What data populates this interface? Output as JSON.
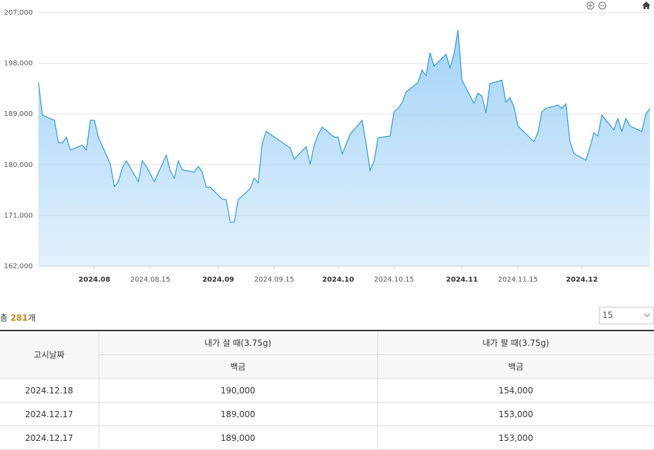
{
  "chart_data": {
    "type": "area",
    "x": [
      "2024.07.18",
      "2024.07.19",
      "2024.07.22",
      "2024.07.23",
      "2024.07.24",
      "2024.07.25",
      "2024.07.26",
      "2024.07.29",
      "2024.07.30",
      "2024.07.31",
      "2024.08.01",
      "2024.08.02",
      "2024.08.05",
      "2024.08.06",
      "2024.08.07",
      "2024.08.08",
      "2024.08.09",
      "2024.08.12",
      "2024.08.13",
      "2024.08.14",
      "2024.08.16",
      "2024.08.19",
      "2024.08.20",
      "2024.08.21",
      "2024.08.22",
      "2024.08.23",
      "2024.08.26",
      "2024.08.27",
      "2024.08.28",
      "2024.08.29",
      "2024.08.30",
      "2024.09.02",
      "2024.09.03",
      "2024.09.04",
      "2024.09.05",
      "2024.09.06",
      "2024.09.09",
      "2024.09.10",
      "2024.09.11",
      "2024.09.12",
      "2024.09.13",
      "2024.09.19",
      "2024.09.20",
      "2024.09.23",
      "2024.09.24",
      "2024.09.25",
      "2024.09.26",
      "2024.09.27",
      "2024.09.30",
      "2024.10.01",
      "2024.10.02",
      "2024.10.04",
      "2024.10.07",
      "2024.10.08",
      "2024.10.09",
      "2024.10.10",
      "2024.10.11",
      "2024.10.14",
      "2024.10.15",
      "2024.10.16",
      "2024.10.17",
      "2024.10.18",
      "2024.10.21",
      "2024.10.22",
      "2024.10.23",
      "2024.10.24",
      "2024.10.25",
      "2024.10.28",
      "2024.10.29",
      "2024.10.30",
      "2024.10.31",
      "2024.11.01",
      "2024.11.04",
      "2024.11.05",
      "2024.11.06",
      "2024.11.07",
      "2024.11.08",
      "2024.11.11",
      "2024.11.12",
      "2024.11.13",
      "2024.11.14",
      "2024.11.15",
      "2024.11.18",
      "2024.11.19",
      "2024.11.20",
      "2024.11.21",
      "2024.11.22",
      "2024.11.25",
      "2024.11.26",
      "2024.11.27",
      "2024.11.28",
      "2024.11.29",
      "2024.12.02",
      "2024.12.03",
      "2024.12.04",
      "2024.12.05",
      "2024.12.06",
      "2024.12.09",
      "2024.12.10",
      "2024.12.11",
      "2024.12.12",
      "2024.12.13",
      "2024.12.16",
      "2024.12.17",
      "2024.12.18"
    ],
    "values": [
      194600,
      188800,
      187900,
      183900,
      183900,
      184900,
      182600,
      183500,
      182600,
      187900,
      187900,
      184900,
      180100,
      176100,
      177000,
      179500,
      180700,
      177000,
      180700,
      179700,
      177000,
      181700,
      178900,
      177600,
      180700,
      179100,
      178700,
      179700,
      178700,
      176000,
      176000,
      173900,
      173800,
      169800,
      169800,
      173800,
      175800,
      177600,
      176800,
      183800,
      185900,
      183000,
      181000,
      183200,
      180100,
      183400,
      185400,
      186700,
      184900,
      184900,
      181900,
      185400,
      187900,
      183800,
      179000,
      180700,
      184800,
      185100,
      189400,
      190000,
      191000,
      192900,
      194600,
      196800,
      195800,
      199900,
      197500,
      199600,
      197200,
      199600,
      203900,
      195000,
      190900,
      192700,
      192200,
      189200,
      194400,
      195000,
      191100,
      191900,
      190300,
      186900,
      184800,
      184100,
      185700,
      189400,
      190000,
      190600,
      190000,
      190800,
      184200,
      182000,
      180800,
      183000,
      185700,
      185100,
      188800,
      186200,
      188200,
      185900,
      188200,
      186900,
      185900,
      189000,
      190000
    ],
    "color": "#2a9ad3",
    "fill": "#9fd1f8",
    "xlim": [
      "2024.07.18",
      "2024.12.18"
    ],
    "ylim": [
      162000,
      207000
    ],
    "yticks": [
      {
        "value": 162000,
        "label": "162,000"
      },
      {
        "value": 171000,
        "label": "171,000"
      },
      {
        "value": 180000,
        "label": "180,000"
      },
      {
        "value": 189000,
        "label": "189,000"
      },
      {
        "value": 198000,
        "label": "198,000"
      },
      {
        "value": 207000,
        "label": "207,000"
      }
    ],
    "xticks": [
      "2024.08",
      "2024.08.15",
      "2024.09",
      "2024.09.15",
      "2024.10",
      "2024.10.15",
      "2024.11",
      "2024.11.15",
      "2024.12"
    ],
    "grid": true
  },
  "summary": {
    "prefix": "총",
    "count": 281,
    "suffix": "개"
  },
  "page_size": 15,
  "table": {
    "header": {
      "date": "고시날짜",
      "buy": "내가 살 때(3.75g)",
      "sell": "내가 팔 때(3.75g)",
      "buy_sub": "백금",
      "sell_sub": "백금"
    },
    "rows": [
      [
        "2024.12.18",
        "190,000",
        "154,000"
      ],
      [
        "2024.12.17",
        "189,000",
        "153,000"
      ],
      [
        "2024.12.17",
        "189,000",
        "153,000"
      ]
    ]
  }
}
